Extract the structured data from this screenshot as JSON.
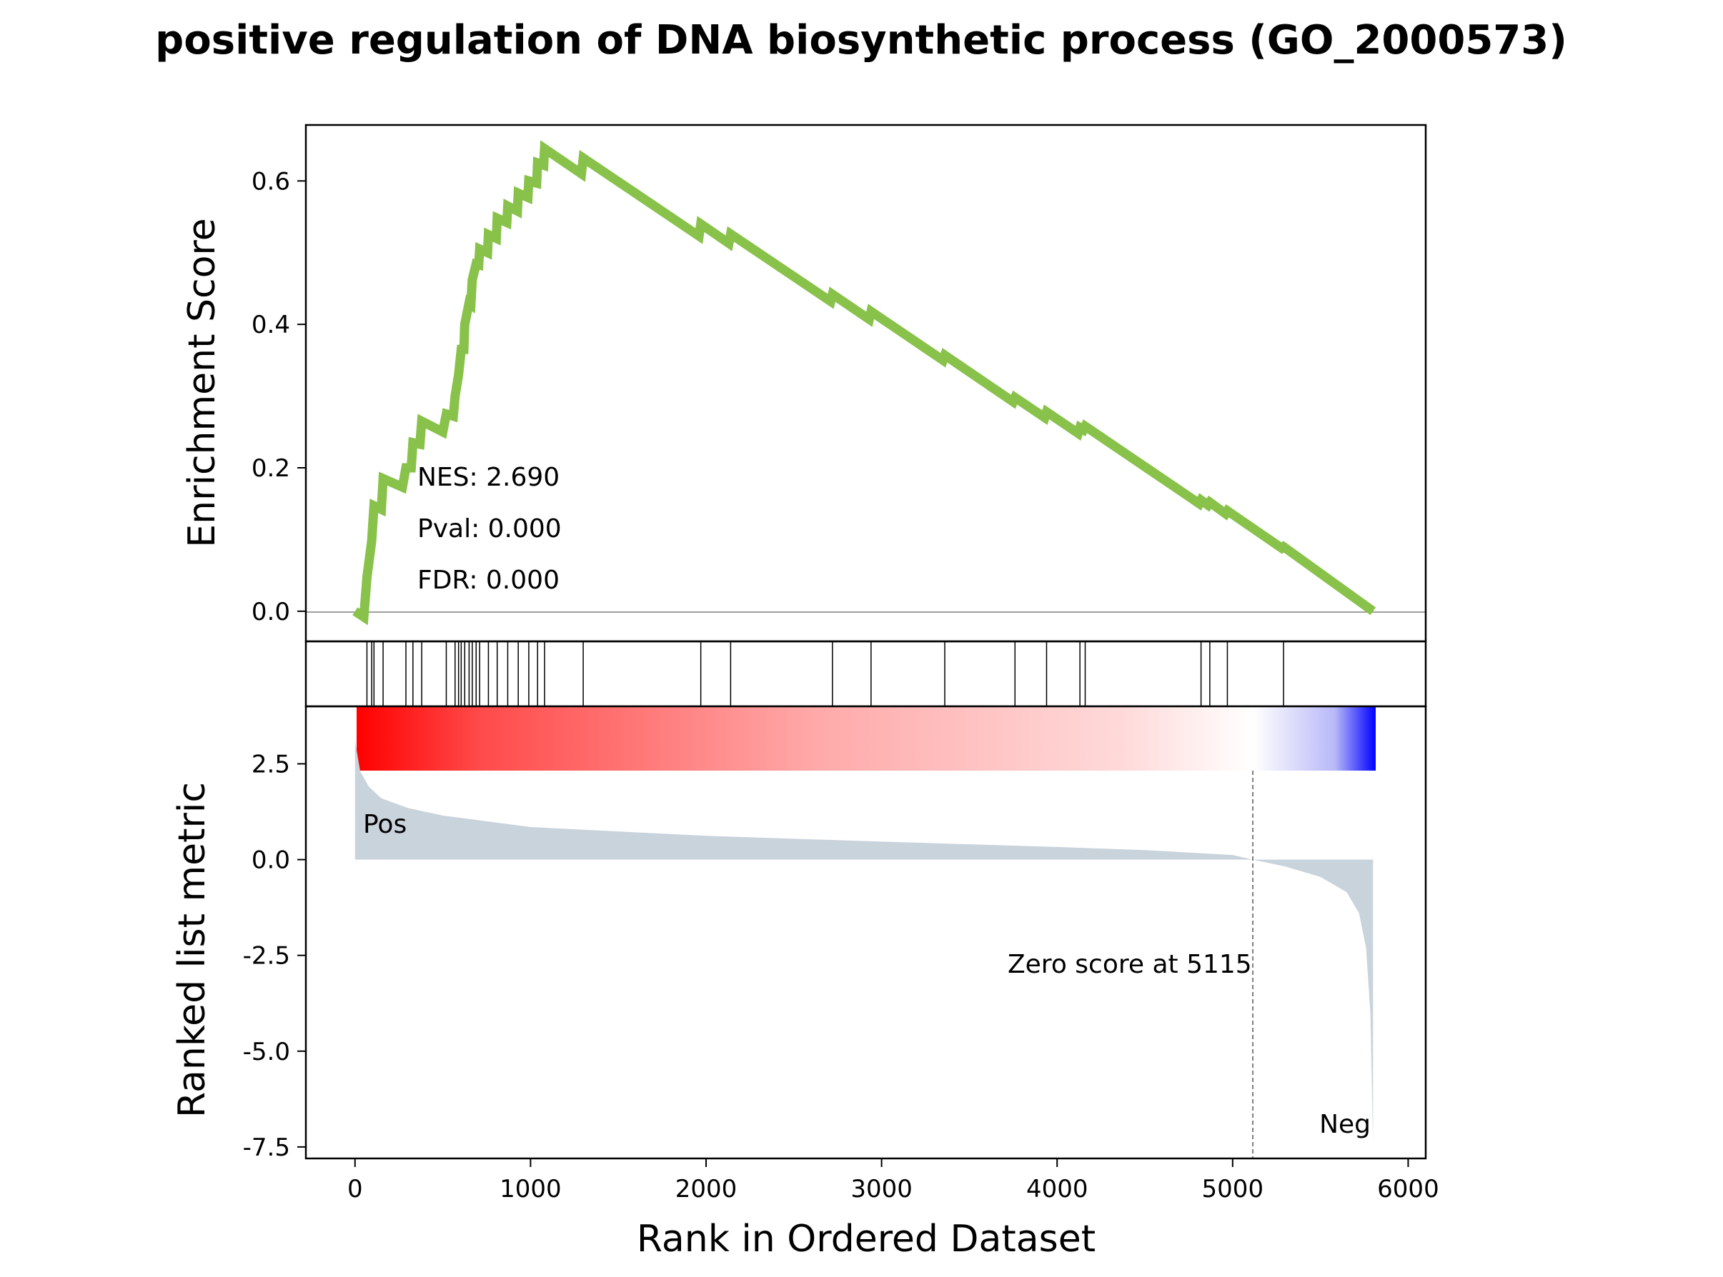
{
  "chart_data": {
    "type": "line",
    "title": "positive regulation of DNA biosynthetic process (GO_2000573)",
    "xlabel": "Rank in Ordered Dataset",
    "es_ylabel": "Enrichment Score",
    "rank_ylabel": "Ranked list metric",
    "xlim": [
      -280,
      6100
    ],
    "es_ylim": [
      -0.042,
      0.678
    ],
    "rank_ylim": [
      -7.8,
      4.0
    ],
    "x_ticks": [
      0,
      1000,
      2000,
      3000,
      4000,
      5000,
      6000
    ],
    "x_tick_labels": [
      "0",
      "1000",
      "2000",
      "3000",
      "4000",
      "5000",
      "6000"
    ],
    "es_ticks": [
      0.0,
      0.2,
      0.4,
      0.6
    ],
    "es_tick_labels": [
      "0.0",
      "0.2",
      "0.4",
      "0.6"
    ],
    "rank_ticks": [
      2.5,
      0.0,
      -2.5,
      -5.0,
      -7.5
    ],
    "rank_tick_labels": [
      "2.5",
      "0.0",
      "-2.5",
      "-5.0",
      "-7.5"
    ],
    "stats": {
      "nes": "NES: 2.690",
      "pval": "Pval: 0.000",
      "fdr": "FDR: 0.000"
    },
    "pos_label": "Pos",
    "neg_label": "Neg",
    "zero_score_label": "Zero score at 5115",
    "zero_score_rank": 5115,
    "n_genes": 5800,
    "hit_ranks": [
      68,
      95,
      108,
      160,
      290,
      330,
      380,
      520,
      570,
      590,
      605,
      625,
      650,
      668,
      690,
      710,
      760,
      810,
      870,
      930,
      990,
      1040,
      1080,
      1300,
      1970,
      2140,
      2720,
      2940,
      3360,
      3760,
      3940,
      4130,
      4160,
      4820,
      4870,
      4970,
      5290
    ],
    "es_points": [
      [
        0,
        0.0
      ],
      [
        50,
        -0.008
      ],
      [
        68,
        0.048
      ],
      [
        95,
        0.098
      ],
      [
        108,
        0.147
      ],
      [
        150,
        0.142
      ],
      [
        160,
        0.185
      ],
      [
        270,
        0.173
      ],
      [
        290,
        0.2
      ],
      [
        320,
        0.2
      ],
      [
        330,
        0.235
      ],
      [
        370,
        0.233
      ],
      [
        380,
        0.265
      ],
      [
        500,
        0.25
      ],
      [
        520,
        0.275
      ],
      [
        560,
        0.272
      ],
      [
        570,
        0.3
      ],
      [
        590,
        0.33
      ],
      [
        605,
        0.365
      ],
      [
        620,
        0.365
      ],
      [
        625,
        0.4
      ],
      [
        650,
        0.43
      ],
      [
        660,
        0.428
      ],
      [
        668,
        0.462
      ],
      [
        690,
        0.484
      ],
      [
        705,
        0.483
      ],
      [
        710,
        0.505
      ],
      [
        755,
        0.5
      ],
      [
        760,
        0.525
      ],
      [
        805,
        0.52
      ],
      [
        810,
        0.548
      ],
      [
        865,
        0.542
      ],
      [
        870,
        0.565
      ],
      [
        925,
        0.558
      ],
      [
        930,
        0.583
      ],
      [
        985,
        0.577
      ],
      [
        990,
        0.6
      ],
      [
        1035,
        0.597
      ],
      [
        1040,
        0.625
      ],
      [
        1075,
        0.622
      ],
      [
        1080,
        0.645
      ],
      [
        1290,
        0.61
      ],
      [
        1300,
        0.632
      ],
      [
        1960,
        0.523
      ],
      [
        1970,
        0.54
      ],
      [
        2130,
        0.513
      ],
      [
        2140,
        0.526
      ],
      [
        2710,
        0.432
      ],
      [
        2720,
        0.442
      ],
      [
        2930,
        0.407
      ],
      [
        2940,
        0.418
      ],
      [
        3350,
        0.35
      ],
      [
        3360,
        0.357
      ],
      [
        3750,
        0.292
      ],
      [
        3760,
        0.298
      ],
      [
        3930,
        0.27
      ],
      [
        3940,
        0.278
      ],
      [
        4120,
        0.248
      ],
      [
        4130,
        0.256
      ],
      [
        4150,
        0.253
      ],
      [
        4160,
        0.258
      ],
      [
        4810,
        0.15
      ],
      [
        4820,
        0.155
      ],
      [
        4860,
        0.148
      ],
      [
        4870,
        0.152
      ],
      [
        4960,
        0.136
      ],
      [
        4970,
        0.14
      ],
      [
        5280,
        0.088
      ],
      [
        5290,
        0.09
      ],
      [
        5800,
        0.0
      ]
    ],
    "metric_points": [
      [
        0,
        3.1
      ],
      [
        30,
        2.3
      ],
      [
        80,
        1.9
      ],
      [
        150,
        1.6
      ],
      [
        300,
        1.35
      ],
      [
        500,
        1.15
      ],
      [
        1000,
        0.85
      ],
      [
        2000,
        0.62
      ],
      [
        3000,
        0.47
      ],
      [
        4000,
        0.33
      ],
      [
        4500,
        0.25
      ],
      [
        5000,
        0.12
      ],
      [
        5115,
        0.0
      ],
      [
        5300,
        -0.18
      ],
      [
        5500,
        -0.45
      ],
      [
        5650,
        -0.85
      ],
      [
        5720,
        -1.4
      ],
      [
        5760,
        -2.3
      ],
      [
        5785,
        -4.0
      ],
      [
        5800,
        -7.4
      ]
    ],
    "colors": {
      "es_line": "#88c24a",
      "metric_fill": "#c9d3dc",
      "pos_label": "#ff0000",
      "neg_label": "#0000ff",
      "gradient_start": "#ff0000",
      "gradient_mid": "#ffffff",
      "gradient_end": "#0000ff"
    }
  }
}
